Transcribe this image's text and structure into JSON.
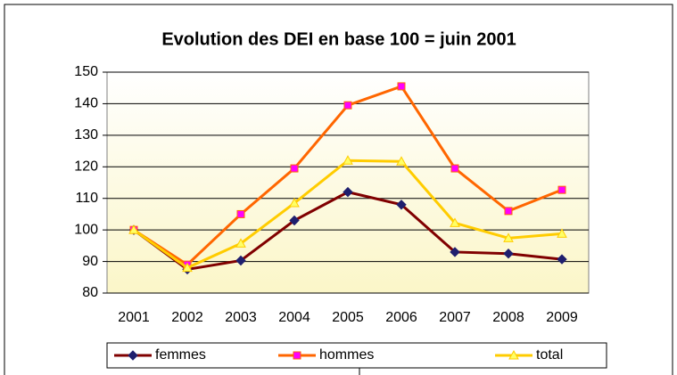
{
  "chart_data": {
    "type": "line",
    "title": "Evolution des DEI en base 100 = juin 2001",
    "categories": [
      "2001",
      "2002",
      "2003",
      "2004",
      "2005",
      "2006",
      "2007",
      "2008",
      "2009"
    ],
    "series": [
      {
        "name": "femmes",
        "color": "#800000",
        "marker_color": "#1f1f6e",
        "marker": "diamond",
        "values": [
          100,
          87.5,
          90.3,
          103,
          112,
          108,
          93,
          92.5,
          90.7
        ]
      },
      {
        "name": "hommes",
        "color": "#ff6600",
        "marker_color": "#ff00ff",
        "marker": "square",
        "values": [
          100,
          89,
          105,
          119.5,
          139.5,
          145.5,
          119.5,
          106,
          112.7
        ]
      },
      {
        "name": "total",
        "color": "#ffcc00",
        "marker_color": "#ffff66",
        "marker": "triangle",
        "values": [
          100,
          88,
          95.7,
          108.5,
          122,
          121.7,
          102.2,
          97.4,
          98.8
        ]
      }
    ],
    "ylim": [
      80,
      150
    ],
    "yticks": [
      80,
      90,
      100,
      110,
      120,
      130,
      140,
      150
    ],
    "grid": true,
    "legend": "bottom"
  }
}
